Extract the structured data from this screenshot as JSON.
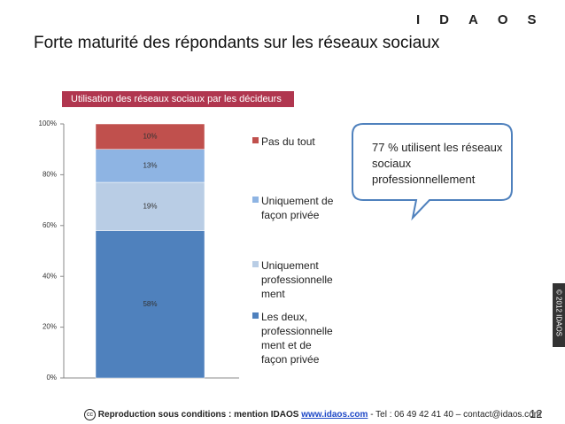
{
  "logo": "IDAOS",
  "title": "Forte maturité des répondants sur les réseaux sociaux",
  "side_note": "© 2012 IDAOS",
  "footer": {
    "text": "Reproduction sous conditions : mention IDAOS ",
    "link": "www.idaos.com",
    "contact": " - Tel : 06 49 42 41 40 – contact@idaos.com",
    "page": "12"
  },
  "chart_data": {
    "type": "stacked_bar",
    "subtitle": "Utilisation des réseaux sociaux par les décideurs",
    "categories": [
      null
    ],
    "series": [
      {
        "name": "Les deux, professionnellement et de façon privée",
        "color": "#4f81bd",
        "values": [
          58
        ],
        "value_labels": [
          "58%"
        ]
      },
      {
        "name": "Uniquement professionnellement",
        "color": "#b9cde5",
        "values": [
          19
        ],
        "value_labels": [
          "19%"
        ]
      },
      {
        "name": "Uniquement de façon privée",
        "color": "#8eb4e3",
        "values": [
          13
        ],
        "value_labels": [
          "13%"
        ]
      },
      {
        "name": "Pas du tout",
        "color": "#c0504d",
        "values": [
          10
        ],
        "value_labels": [
          "10%"
        ]
      }
    ],
    "ylim": [
      0,
      100
    ],
    "yticks": [
      {
        "value": 0,
        "label": "0%"
      },
      {
        "value": 20,
        "label": "20%"
      },
      {
        "value": 40,
        "label": "40%"
      },
      {
        "value": 60,
        "label": "60%"
      },
      {
        "value": 80,
        "label": "80%"
      },
      {
        "value": 100,
        "label": "100%"
      }
    ],
    "legend": "right",
    "annotation": "77 % utilisent les réseaux sociaux professionnellement"
  }
}
